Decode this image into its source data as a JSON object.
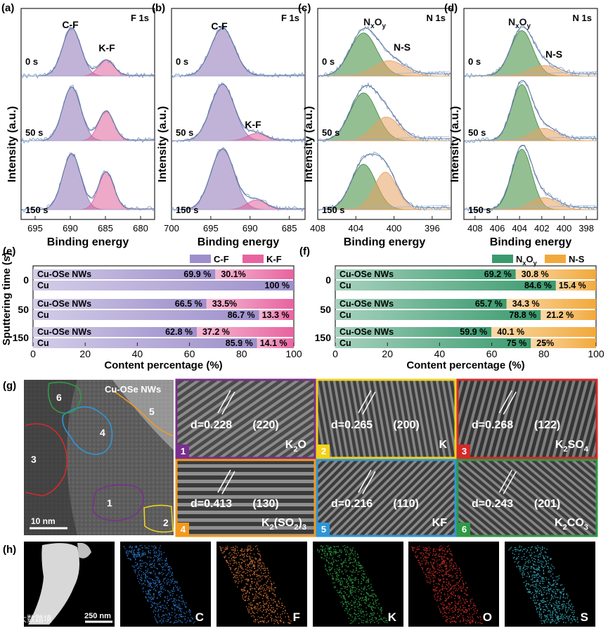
{
  "xps": {
    "ylabel": "Intensity (a.u.)",
    "xlabel": "Binding energy",
    "panels": [
      {
        "letter": "(a)",
        "element": "F 1s",
        "peaks": [
          "C-F",
          "K-F"
        ],
        "times": [
          "0 s",
          "50 s",
          "150 s"
        ],
        "ticks": [
          "695",
          "690",
          "685",
          "680"
        ],
        "comps": [
          [
            {
              "c": 689.8,
              "a": 1.0,
              "w": 1.3,
              "col": "#8e74b8"
            },
            {
              "c": 684.9,
              "a": 0.33,
              "w": 1.1,
              "col": "#e0609a"
            }
          ],
          [
            {
              "c": 689.8,
              "a": 0.95,
              "w": 1.3,
              "col": "#8e74b8"
            },
            {
              "c": 684.9,
              "a": 0.52,
              "w": 1.1,
              "col": "#e0609a"
            }
          ],
          [
            {
              "c": 689.8,
              "a": 0.92,
              "w": 1.3,
              "col": "#8e74b8"
            },
            {
              "c": 684.9,
              "a": 0.62,
              "w": 1.1,
              "col": "#e0609a"
            }
          ]
        ]
      },
      {
        "letter": "(b)",
        "element": "F 1s",
        "peaks": [
          "C-F",
          "K-F"
        ],
        "times": [
          "0 s",
          "50 s",
          "150 s"
        ],
        "ticks": [
          "700",
          "695",
          "690",
          "685"
        ],
        "comps": [
          [
            {
              "c": 693.5,
              "a": 1.0,
              "w": 1.5,
              "col": "#8e74b8"
            }
          ],
          [
            {
              "c": 693.5,
              "a": 1.0,
              "w": 1.5,
              "col": "#8e74b8"
            },
            {
              "c": 689.2,
              "a": 0.13,
              "w": 1.2,
              "col": "#e0609a"
            }
          ],
          [
            {
              "c": 693.5,
              "a": 1.0,
              "w": 1.5,
              "col": "#8e74b8"
            },
            {
              "c": 689.2,
              "a": 0.16,
              "w": 1.2,
              "col": "#e0609a"
            }
          ]
        ]
      },
      {
        "letter": "(c)",
        "element": "N 1s",
        "peaks": [
          "NxOy",
          "N-S"
        ],
        "times": [
          "0 s",
          "50 s",
          "150 s"
        ],
        "ticks": [
          "408",
          "404",
          "400",
          "396"
        ],
        "comps": [
          [
            {
              "c": 403.2,
              "a": 0.9,
              "w": 1.4,
              "col": "#3d8a3a"
            },
            {
              "c": 400.5,
              "a": 0.32,
              "w": 1.6,
              "col": "#e8a060"
            }
          ],
          [
            {
              "c": 403.2,
              "a": 0.85,
              "w": 1.4,
              "col": "#3d8a3a"
            },
            {
              "c": 400.8,
              "a": 0.42,
              "w": 1.4,
              "col": "#e8a060"
            }
          ],
          [
            {
              "c": 403.2,
              "a": 0.75,
              "w": 1.3,
              "col": "#3d8a3a"
            },
            {
              "c": 400.9,
              "a": 0.62,
              "w": 1.2,
              "col": "#e8a060"
            }
          ]
        ]
      },
      {
        "letter": "(d)",
        "element": "N 1s",
        "peaks": [
          "NxOy",
          "N-S"
        ],
        "times": [
          "0 s",
          "50 s",
          "150 s"
        ],
        "ticks": [
          "408",
          "406",
          "404",
          "402",
          "400",
          "398"
        ],
        "comps": [
          [
            {
              "c": 403.8,
              "a": 0.95,
              "w": 1.0,
              "col": "#3d8a3a"
            },
            {
              "c": 401.8,
              "a": 0.22,
              "w": 1.2,
              "col": "#e8a060"
            }
          ],
          [
            {
              "c": 403.8,
              "a": 1.0,
              "w": 0.9,
              "col": "#3d8a3a"
            },
            {
              "c": 401.8,
              "a": 0.22,
              "w": 1.2,
              "col": "#e8a060"
            }
          ],
          [
            {
              "c": 403.8,
              "a": 1.0,
              "w": 0.9,
              "col": "#3d8a3a"
            },
            {
              "c": 401.8,
              "a": 0.2,
              "w": 1.2,
              "col": "#e8a060"
            }
          ]
        ]
      }
    ]
  },
  "chart_data": [
    {
      "type": "bar",
      "orientation": "horizontal",
      "stacked": true,
      "panel": "(e)",
      "ylabel": "Sputtering time (s)",
      "xlabel": "Content percentage (%)",
      "xlim": [
        0,
        100
      ],
      "xticks": [
        "0",
        "20",
        "40",
        "60",
        "80",
        "100"
      ],
      "legend": [
        {
          "name": "C-F",
          "color": "#9d8fcb"
        },
        {
          "name": "K-F",
          "color": "#e8639f"
        }
      ],
      "groups": [
        {
          "time": "0",
          "rows": [
            {
              "name": "Cu-OSe NWs",
              "values": [
                69.9,
                30.1
              ],
              "labels": [
                "69.9 %",
                "30.1%"
              ]
            },
            {
              "name": "Cu",
              "values": [
                100,
                0
              ],
              "labels": [
                "100 %",
                ""
              ]
            }
          ]
        },
        {
          "time": "50",
          "rows": [
            {
              "name": "Cu-OSe NWs",
              "values": [
                66.5,
                33.5
              ],
              "labels": [
                "66.5 %",
                "33.5%"
              ]
            },
            {
              "name": "Cu",
              "values": [
                86.7,
                13.3
              ],
              "labels": [
                "86.7 %",
                "13.3 %"
              ]
            }
          ]
        },
        {
          "time": "150",
          "rows": [
            {
              "name": "Cu-OSe NWs",
              "values": [
                62.8,
                37.2
              ],
              "labels": [
                "62.8 %",
                "37.2 %"
              ]
            },
            {
              "name": "Cu",
              "values": [
                85.9,
                14.1
              ],
              "labels": [
                "85.9 %",
                "14.1 %"
              ]
            }
          ]
        }
      ]
    },
    {
      "type": "bar",
      "orientation": "horizontal",
      "stacked": true,
      "panel": "(f)",
      "xlabel": "Content percentage (%)",
      "xlim": [
        0,
        100
      ],
      "xticks": [
        "0",
        "20",
        "40",
        "60",
        "80",
        "100"
      ],
      "legend": [
        {
          "name": "NxOy",
          "color": "#3a9a6e"
        },
        {
          "name": "N-S",
          "color": "#f2a93b"
        }
      ],
      "groups": [
        {
          "time": "0",
          "rows": [
            {
              "name": "Cu-OSe NWs",
              "values": [
                69.2,
                30.8
              ],
              "labels": [
                "69.2 %",
                "30.8 %"
              ]
            },
            {
              "name": "Cu",
              "values": [
                84.6,
                15.4
              ],
              "labels": [
                "84.6 %",
                "15.4 %"
              ]
            }
          ]
        },
        {
          "time": "50",
          "rows": [
            {
              "name": "Cu-OSe NWs",
              "values": [
                65.7,
                34.3
              ],
              "labels": [
                "65.7 %",
                "34.3 %"
              ]
            },
            {
              "name": "Cu",
              "values": [
                78.8,
                21.2
              ],
              "labels": [
                "78.8 %",
                "21.2 %"
              ]
            }
          ]
        },
        {
          "time": "150",
          "rows": [
            {
              "name": "Cu-OSe NWs",
              "values": [
                59.9,
                40.1
              ],
              "labels": [
                "59.9 %",
                "40.1 %"
              ]
            },
            {
              "name": "Cu",
              "values": [
                75,
                25
              ],
              "labels": [
                "75 %",
                "25%"
              ]
            }
          ]
        }
      ]
    }
  ],
  "tem": {
    "letter": "(g)",
    "overview_label": "Cu-OSe NWs",
    "scale_bar": "10 nm",
    "regions": [
      "1",
      "2",
      "3",
      "4",
      "5",
      "6"
    ],
    "insets": [
      {
        "num": "1",
        "d": "d=0.228",
        "hkl": "(220)",
        "phase": "K2O",
        "border": "#7b2f8e"
      },
      {
        "num": "2",
        "d": "d=0.265",
        "hkl": "(200)",
        "phase": "K",
        "border": "#f2d21b"
      },
      {
        "num": "3",
        "d": "d=0.268",
        "hkl": "(122)",
        "phase": "K2SO4",
        "border": "#d42a2a"
      },
      {
        "num": "4",
        "d": "d=0.413",
        "hkl": "(130)",
        "phase": "K2(SO2)3",
        "border": "#f29a1e"
      },
      {
        "num": "5",
        "d": "d=0.216",
        "hkl": "(110)",
        "phase": "KF",
        "border": "#2e96d8"
      },
      {
        "num": "6",
        "d": "d=0.243",
        "hkl": "(201)",
        "phase": "K2CO3",
        "border": "#2f9a45"
      }
    ]
  },
  "eds": {
    "letter": "(h)",
    "scale_bar": "250 nm",
    "watermark": "大数踏境",
    "maps": [
      {
        "el": "C",
        "color": "#2f7fd8"
      },
      {
        "el": "F",
        "color": "#e07a3a"
      },
      {
        "el": "K",
        "color": "#2fa84a"
      },
      {
        "el": "O",
        "color": "#d8302a"
      },
      {
        "el": "S",
        "color": "#3ab6c8"
      }
    ]
  }
}
